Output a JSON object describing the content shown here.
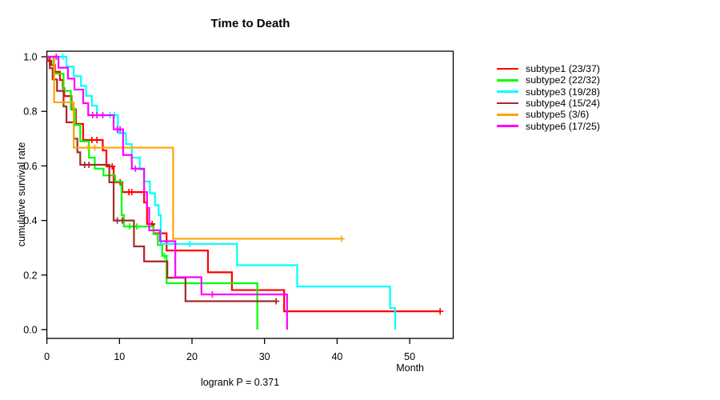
{
  "chart_data": {
    "type": "line",
    "subtype": "kaplan-meier-step",
    "title": "Time to Death",
    "xlabel": "Month",
    "ylabel": "cumulative survival rate",
    "annotation": "logrank P = 0.371",
    "x_ticks": [
      0,
      10,
      20,
      30,
      40,
      50
    ],
    "y_ticks": [
      0.0,
      0.2,
      0.4,
      0.6,
      0.8,
      1.0
    ],
    "xlim": [
      0,
      56
    ],
    "ylim": [
      0,
      1
    ],
    "grid": false,
    "legend_position": "right",
    "series": [
      {
        "name": "subtype1 (23/37)",
        "color": "#ff0000",
        "steps": [
          [
            0.1,
            0.985
          ],
          [
            0.6,
            0.97
          ],
          [
            1.1,
            0.945
          ],
          [
            1.8,
            0.915
          ],
          [
            2.2,
            0.885
          ],
          [
            2.4,
            0.856
          ],
          [
            3.4,
            0.807
          ],
          [
            4.0,
            0.754
          ],
          [
            5.0,
            0.695
          ],
          [
            7.7,
            0.657
          ],
          [
            8.2,
            0.598
          ],
          [
            9.2,
            0.54
          ],
          [
            10.4,
            0.504
          ],
          [
            13.4,
            0.466
          ],
          [
            13.8,
            0.387
          ],
          [
            14.7,
            0.353
          ],
          [
            16.5,
            0.29
          ],
          [
            22.2,
            0.21
          ],
          [
            25.5,
            0.145
          ],
          [
            32.7,
            0.067
          ]
        ],
        "end": 54.2,
        "censors": [
          [
            6.2,
            0.695
          ],
          [
            6.9,
            0.695
          ],
          [
            9.0,
            0.598
          ],
          [
            10.1,
            0.54
          ],
          [
            11.3,
            0.504
          ],
          [
            11.7,
            0.504
          ],
          [
            14.5,
            0.387
          ],
          [
            54.2,
            0.067
          ]
        ]
      },
      {
        "name": "subtype2 (22/32)",
        "color": "#00ff00",
        "steps": [
          [
            0.9,
            0.938
          ],
          [
            2.3,
            0.875
          ],
          [
            3.3,
            0.81
          ],
          [
            3.9,
            0.75
          ],
          [
            4.6,
            0.69
          ],
          [
            5.8,
            0.63
          ],
          [
            6.6,
            0.59
          ],
          [
            7.8,
            0.565
          ],
          [
            9.4,
            0.543
          ],
          [
            10.3,
            0.42
          ],
          [
            10.6,
            0.378
          ],
          [
            14.7,
            0.35
          ],
          [
            15.3,
            0.31
          ],
          [
            15.9,
            0.27
          ],
          [
            16.5,
            0.17
          ],
          [
            29.0,
            0
          ]
        ],
        "end": 29.0,
        "censors": [
          [
            11.4,
            0.378
          ],
          [
            12.4,
            0.378
          ],
          [
            16.2,
            0.27
          ]
        ]
      },
      {
        "name": "subtype3 (19/28)",
        "color": "#00ffff",
        "steps": [
          [
            2.7,
            0.964
          ],
          [
            3.7,
            0.929
          ],
          [
            4.7,
            0.893
          ],
          [
            5.4,
            0.857
          ],
          [
            6.2,
            0.821
          ],
          [
            6.9,
            0.786
          ],
          [
            9.8,
            0.72
          ],
          [
            10.9,
            0.68
          ],
          [
            11.7,
            0.63
          ],
          [
            12.8,
            0.587
          ],
          [
            13.4,
            0.543
          ],
          [
            14.2,
            0.5
          ],
          [
            14.9,
            0.456
          ],
          [
            15.4,
            0.42
          ],
          [
            15.7,
            0.314
          ],
          [
            26.2,
            0.236
          ],
          [
            34.5,
            0.158
          ],
          [
            47.3,
            0.079
          ],
          [
            48.0,
            0
          ]
        ],
        "end": 48.0,
        "censors": [
          [
            2.2,
            1.0
          ],
          [
            8.7,
            0.786
          ],
          [
            9.3,
            0.786
          ],
          [
            19.7,
            0.314
          ]
        ]
      },
      {
        "name": "subtype4 (15/24)",
        "color": "#a52a2a",
        "steps": [
          [
            0.4,
            0.958
          ],
          [
            0.8,
            0.917
          ],
          [
            1.4,
            0.875
          ],
          [
            2.3,
            0.818
          ],
          [
            2.7,
            0.76
          ],
          [
            3.7,
            0.7
          ],
          [
            4.2,
            0.65
          ],
          [
            4.6,
            0.604
          ],
          [
            8.6,
            0.54
          ],
          [
            9.2,
            0.4
          ],
          [
            12.0,
            0.305
          ],
          [
            13.4,
            0.25
          ],
          [
            16.6,
            0.19
          ],
          [
            19.1,
            0.104
          ]
        ],
        "end": 31.6,
        "censors": [
          [
            5.2,
            0.604
          ],
          [
            5.8,
            0.604
          ],
          [
            9.7,
            0.4
          ],
          [
            10.4,
            0.4
          ],
          [
            31.6,
            0.104
          ]
        ]
      },
      {
        "name": "subtype5 (3/6)",
        "color": "#ffa500",
        "steps": [
          [
            1.0,
            0.833
          ],
          [
            3.7,
            0.667
          ],
          [
            17.4,
            0.333
          ]
        ],
        "end": 40.6,
        "censors": [
          [
            5.7,
            0.667
          ],
          [
            6.6,
            0.667
          ],
          [
            40.6,
            0.333
          ]
        ]
      },
      {
        "name": "subtype6 (17/25)",
        "color": "#ff00ff",
        "steps": [
          [
            1.6,
            0.96
          ],
          [
            2.9,
            0.92
          ],
          [
            3.8,
            0.88
          ],
          [
            5.0,
            0.83
          ],
          [
            5.7,
            0.786
          ],
          [
            9.2,
            0.734
          ],
          [
            10.5,
            0.64
          ],
          [
            11.7,
            0.59
          ],
          [
            13.4,
            0.504
          ],
          [
            13.8,
            0.446
          ],
          [
            14.1,
            0.364
          ],
          [
            15.6,
            0.324
          ],
          [
            17.7,
            0.192
          ],
          [
            21.3,
            0.129
          ],
          [
            33.1,
            0
          ]
        ],
        "end": 33.1,
        "censors": [
          [
            1.3,
            1.0
          ],
          [
            6.3,
            0.786
          ],
          [
            6.9,
            0.786
          ],
          [
            7.7,
            0.786
          ],
          [
            9.7,
            0.734
          ],
          [
            10.1,
            0.734
          ],
          [
            12.2,
            0.59
          ],
          [
            22.8,
            0.129
          ]
        ]
      }
    ]
  }
}
